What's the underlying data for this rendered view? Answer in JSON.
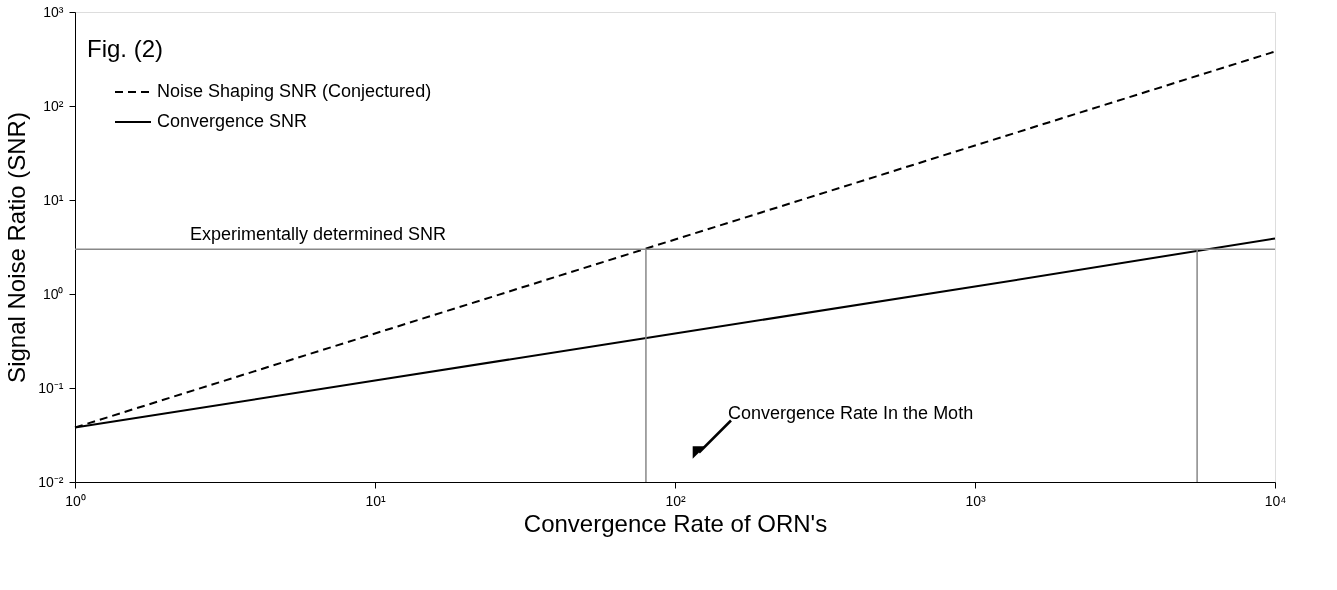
{
  "chart_data": {
    "type": "line",
    "xlabel": "Convergence Rate of ORN's",
    "ylabel": "Signal Noise Ratio (SNR)",
    "log": "xy",
    "xlim": [
      1,
      10000
    ],
    "ylim": [
      0.01,
      1000
    ],
    "xticks": [
      {
        "value": 1,
        "label": "10⁰"
      },
      {
        "value": 10,
        "label": "10¹"
      },
      {
        "value": 100,
        "label": "10²"
      },
      {
        "value": 1000,
        "label": "10³"
      },
      {
        "value": 10000,
        "label": "10⁴"
      }
    ],
    "yticks": [
      {
        "value": 0.01,
        "label": "10⁻²"
      },
      {
        "value": 0.1,
        "label": "10⁻¹"
      },
      {
        "value": 1,
        "label": "10⁰"
      },
      {
        "value": 10,
        "label": "10¹"
      },
      {
        "value": 100,
        "label": "10²"
      },
      {
        "value": 1000,
        "label": "10³"
      }
    ],
    "grid": false,
    "legend": "top left",
    "marker": "none",
    "series": [
      {
        "name": "Noise Shaping SNR (Conjectured)",
        "color": "#000000",
        "line_style": "dashed",
        "x": [
          1,
          10,
          100,
          1000,
          10000
        ],
        "values": [
          0.038,
          0.38,
          3.8,
          38,
          380
        ]
      },
      {
        "name": "Convergence SNR",
        "color": "#000000",
        "line_style": "solid",
        "x": [
          1,
          10,
          100,
          1000,
          10000
        ],
        "values": [
          0.038,
          0.12,
          0.38,
          1.2,
          3.9
        ]
      },
      {
        "color": "#888888",
        "line_style": "solid",
        "x": [
          80,
          80
        ],
        "values": [
          0.01,
          3
        ]
      },
      {
        "color": "#888888",
        "line_style": "solid",
        "x": [
          5500,
          5500
        ],
        "values": [
          0.01,
          3
        ]
      }
    ],
    "ref_lines": [
      {
        "axis": "y",
        "value": 3,
        "label": "Experimentally determined SNR",
        "color": "#888888"
      }
    ],
    "annotations": [
      "Fig. (2)",
      "Convergence Rate In the Moth"
    ]
  }
}
